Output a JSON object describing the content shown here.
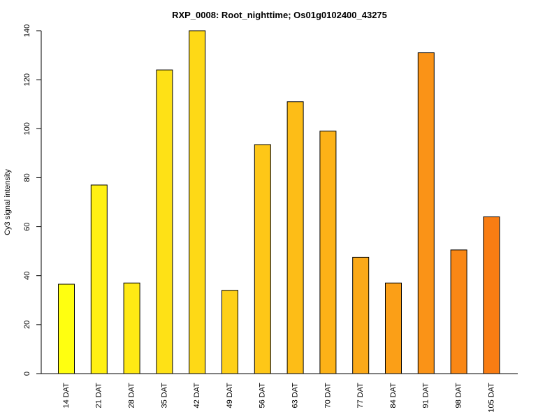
{
  "chart_data": {
    "type": "bar",
    "title": "RXP_0008: Root_nighttime; Os01g0102400_43275",
    "xlabel": "",
    "ylabel": "Cy3 signal intensity",
    "ylim": [
      0,
      140
    ],
    "yticks": [
      0,
      20,
      40,
      60,
      80,
      100,
      120,
      140
    ],
    "grid": false,
    "legend": "none",
    "categories": [
      "14 DAT",
      "21 DAT",
      "28 DAT",
      "35 DAT",
      "42 DAT",
      "49 DAT",
      "56 DAT",
      "63 DAT",
      "70 DAT",
      "77 DAT",
      "84 DAT",
      "91 DAT",
      "98 DAT",
      "105 DAT"
    ],
    "values": [
      36.5,
      77,
      37,
      124,
      140,
      34,
      93.5,
      111,
      99,
      47.5,
      37,
      131,
      50.5,
      64
    ],
    "colors": [
      "#FFFF10",
      "#FFF012",
      "#FFE914",
      "#FEE116",
      "#FED916",
      "#FED018",
      "#FEC717",
      "#FDBD17",
      "#FCB217",
      "#FBA918",
      "#FB9F17",
      "#FA9317",
      "#F98715",
      "#F97D13"
    ]
  }
}
